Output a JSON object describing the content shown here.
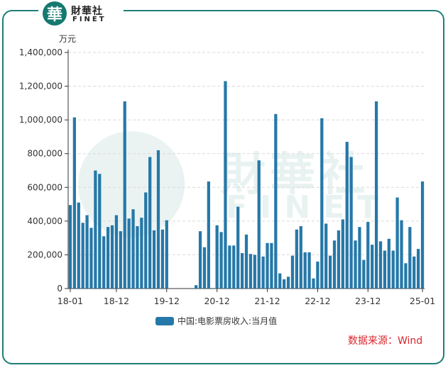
{
  "logo": {
    "seal": "華",
    "cn": "財華社",
    "en": "FINET"
  },
  "watermark": {
    "cn": "財華社",
    "en": "FINET"
  },
  "unit": "万元",
  "source": "数据来源：Wind",
  "colors": {
    "bar": "#2678a8",
    "frame": "#1e7f78",
    "source": "#d9262c"
  },
  "chart_data": {
    "type": "bar",
    "title": "",
    "xlabel": "",
    "ylabel": "万元",
    "ylim": [
      0,
      1400000
    ],
    "yticks": [
      0,
      200000,
      400000,
      600000,
      800000,
      1000000,
      1200000,
      1400000
    ],
    "ytick_labels": [
      "0",
      "200,000",
      "400,000",
      "600,000",
      "800,000",
      "1,000,000",
      "1,200,000",
      "1,400,000"
    ],
    "xtick_labels": [
      "18-01",
      "18-12",
      "19-12",
      "20-12",
      "21-12",
      "22-12",
      "23-12",
      "25-01"
    ],
    "xtick_categories": [
      "2018-01",
      "2018-12",
      "2019-12",
      "2020-12",
      "2021-12",
      "2022-12",
      "2023-12",
      "2025-01"
    ],
    "grid": true,
    "legend_position": "bottom",
    "series": [
      {
        "name": "中国:电影票房收入:当月值",
        "categories": [
          "2018-01",
          "2018-02",
          "2018-03",
          "2018-04",
          "2018-05",
          "2018-06",
          "2018-07",
          "2018-08",
          "2018-09",
          "2018-10",
          "2018-11",
          "2018-12",
          "2019-01",
          "2019-02",
          "2019-03",
          "2019-04",
          "2019-05",
          "2019-06",
          "2019-07",
          "2019-08",
          "2019-09",
          "2019-10",
          "2019-11",
          "2019-12",
          "2020-01",
          "2020-02",
          "2020-03",
          "2020-04",
          "2020-05",
          "2020-06",
          "2020-07",
          "2020-08",
          "2020-09",
          "2020-10",
          "2020-11",
          "2020-12",
          "2021-01",
          "2021-02",
          "2021-03",
          "2021-04",
          "2021-05",
          "2021-06",
          "2021-07",
          "2021-08",
          "2021-09",
          "2021-10",
          "2021-11",
          "2021-12",
          "2022-01",
          "2022-02",
          "2022-03",
          "2022-04",
          "2022-05",
          "2022-06",
          "2022-07",
          "2022-08",
          "2022-09",
          "2022-10",
          "2022-11",
          "2022-12",
          "2023-01",
          "2023-02",
          "2023-03",
          "2023-04",
          "2023-05",
          "2023-06",
          "2023-07",
          "2023-08",
          "2023-09",
          "2023-10",
          "2023-11",
          "2023-12",
          "2024-01",
          "2024-02",
          "2024-03",
          "2024-04",
          "2024-05",
          "2024-06",
          "2024-07",
          "2024-08",
          "2024-09",
          "2024-10",
          "2024-11",
          "2024-12",
          "2025-01"
        ],
        "values": [
          495000,
          1015000,
          510000,
          390000,
          435000,
          360000,
          700000,
          680000,
          310000,
          365000,
          375000,
          435000,
          340000,
          1110000,
          415000,
          470000,
          370000,
          420000,
          570000,
          780000,
          345000,
          820000,
          350000,
          405000,
          null,
          null,
          null,
          null,
          null,
          null,
          20000,
          340000,
          245000,
          635000,
          null,
          375000,
          335000,
          1230000,
          255000,
          255000,
          485000,
          210000,
          320000,
          205000,
          200000,
          760000,
          190000,
          270000,
          270000,
          1035000,
          90000,
          55000,
          70000,
          195000,
          350000,
          370000,
          215000,
          215000,
          60000,
          160000,
          1010000,
          385000,
          195000,
          285000,
          345000,
          410000,
          870000,
          780000,
          285000,
          365000,
          170000,
          395000,
          260000,
          1110000,
          280000,
          225000,
          295000,
          225000,
          540000,
          405000,
          150000,
          365000,
          190000,
          235000,
          635000
        ]
      }
    ]
  }
}
